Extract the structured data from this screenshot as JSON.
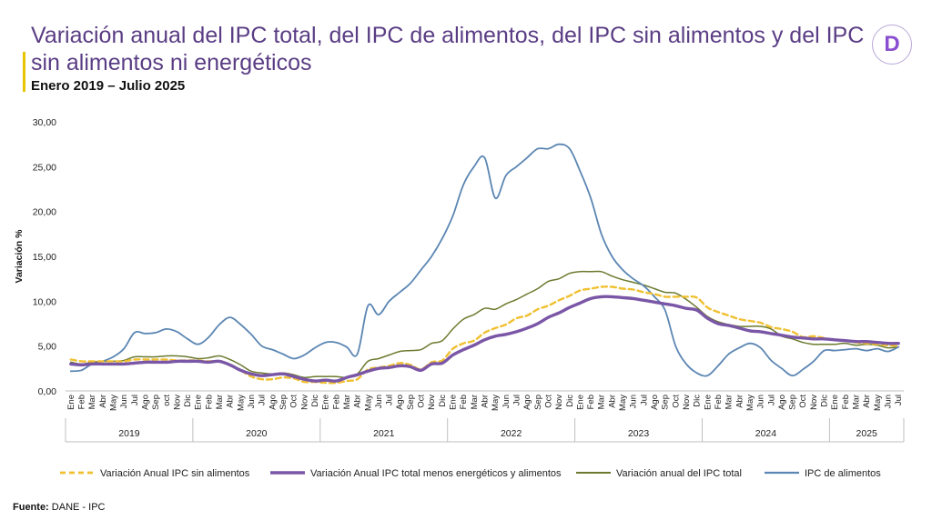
{
  "header": {
    "title": "Variación anual del IPC total, del IPC de alimentos, del IPC sin alimentos y del IPC sin alimentos ni energéticos",
    "subtitle": "Enero 2019 – Julio 2025",
    "logo_letter": "D"
  },
  "footer": {
    "source_label": "Fuente:",
    "source_value": "DANE - IPC"
  },
  "colors": {
    "title": "#5a3d84",
    "accent": "#e9c400"
  },
  "chart_data": {
    "type": "line",
    "ylabel": "Variación %",
    "ylim": [
      0,
      30
    ],
    "yticks": [
      "0,00",
      "5,00",
      "10,00",
      "15,00",
      "20,00",
      "25,00",
      "30,00"
    ],
    "month_labels": [
      "Ene",
      "Feb",
      "Mar",
      "Abr",
      "May",
      "Jun",
      "Jul",
      "Ago",
      "Sep",
      "oct",
      "Nov",
      "Dic",
      "Ene",
      "Feb",
      "Mar",
      "Abr",
      "May",
      "Jun",
      "Jul",
      "Ago",
      "Sep",
      "Oct",
      "Nov",
      "Dic",
      "Ene",
      "Feb",
      "Mar",
      "Abr",
      "May",
      "Jun",
      "Jul",
      "Ago",
      "Sep",
      "Oct",
      "Nov",
      "Dic",
      "Ene",
      "Feb",
      "Mar",
      "Abr",
      "May",
      "Jun",
      "Jul",
      "Ago",
      "Sep",
      "Oct",
      "Nov",
      "Dic",
      "Ene",
      "Feb",
      "Mar",
      "Abr",
      "May",
      "Jun",
      "Jul",
      "Ago",
      "Sep",
      "Oct",
      "Nov",
      "Dic",
      "Ene",
      "Feb",
      "Mar",
      "Abr",
      "May",
      "Jun",
      "Jul",
      "Ago",
      "Sep",
      "Oct",
      "Nov",
      "Dic",
      "Ene",
      "Feb",
      "Mar",
      "Abr",
      "May",
      "Jun",
      "Jul"
    ],
    "years": [
      "2019",
      "2020",
      "2021",
      "2022",
      "2023",
      "2024",
      "2025"
    ],
    "series": [
      {
        "name": "Variación Anual IPC sin alimentos",
        "color": "#f0c030",
        "style": "dashed",
        "values": [
          3.5,
          3.3,
          3.3,
          3.3,
          3.3,
          3.3,
          3.5,
          3.5,
          3.5,
          3.5,
          3.4,
          3.4,
          3.4,
          3.3,
          3.3,
          2.9,
          2.3,
          1.6,
          1.3,
          1.3,
          1.5,
          1.4,
          1.0,
          1.0,
          0.9,
          0.9,
          1.1,
          1.3,
          2.4,
          2.6,
          2.8,
          3.1,
          2.9,
          2.4,
          3.2,
          3.4,
          4.7,
          5.3,
          5.6,
          6.5,
          7.0,
          7.4,
          8.1,
          8.4,
          9.1,
          9.5,
          10.1,
          10.6,
          11.2,
          11.4,
          11.6,
          11.6,
          11.4,
          11.3,
          11.0,
          10.8,
          10.5,
          10.5,
          10.5,
          10.4,
          9.3,
          8.8,
          8.4,
          8.0,
          7.8,
          7.6,
          7.1,
          6.9,
          6.6,
          6.0,
          6.1,
          5.9,
          5.7,
          5.6,
          5.4,
          5.3,
          5.2,
          5.1,
          5.0
        ]
      },
      {
        "name": "Variación Anual IPC total menos energéticos y alimentos",
        "color": "#7a56a6",
        "style": "solid",
        "values": [
          3.0,
          2.9,
          3.0,
          3.0,
          3.0,
          3.0,
          3.1,
          3.2,
          3.2,
          3.2,
          3.3,
          3.3,
          3.3,
          3.2,
          3.3,
          2.9,
          2.3,
          1.9,
          1.7,
          1.8,
          1.9,
          1.6,
          1.3,
          1.1,
          1.2,
          1.1,
          1.5,
          1.8,
          2.2,
          2.5,
          2.6,
          2.8,
          2.7,
          2.3,
          3.0,
          3.1,
          4.0,
          4.6,
          5.1,
          5.7,
          6.1,
          6.3,
          6.6,
          7.0,
          7.5,
          8.2,
          8.7,
          9.3,
          9.8,
          10.3,
          10.5,
          10.5,
          10.4,
          10.3,
          10.1,
          9.9,
          9.7,
          9.5,
          9.2,
          9.0,
          8.1,
          7.5,
          7.3,
          7.0,
          6.7,
          6.6,
          6.4,
          6.2,
          6.0,
          5.9,
          5.8,
          5.8,
          5.7,
          5.6,
          5.5,
          5.5,
          5.4,
          5.3,
          5.3
        ]
      },
      {
        "name": "Variación anual del IPC total",
        "color": "#6b7a2f",
        "style": "solid",
        "values": [
          3.2,
          3.0,
          3.2,
          3.3,
          3.3,
          3.4,
          3.8,
          3.8,
          3.8,
          3.9,
          3.9,
          3.8,
          3.6,
          3.7,
          3.9,
          3.5,
          2.9,
          2.2,
          2.0,
          1.9,
          2.0,
          1.8,
          1.5,
          1.6,
          1.6,
          1.6,
          1.5,
          1.9,
          3.3,
          3.6,
          4.0,
          4.4,
          4.5,
          4.6,
          5.3,
          5.6,
          6.9,
          8.0,
          8.5,
          9.2,
          9.1,
          9.7,
          10.2,
          10.8,
          11.4,
          12.2,
          12.5,
          13.1,
          13.3,
          13.3,
          13.3,
          12.8,
          12.4,
          12.1,
          11.8,
          11.4,
          11.0,
          10.9,
          10.2,
          9.3,
          8.3,
          7.7,
          7.4,
          7.2,
          7.2,
          7.2,
          6.9,
          6.1,
          5.8,
          5.4,
          5.2,
          5.2,
          5.2,
          5.3,
          5.1,
          5.2,
          5.1,
          4.8,
          4.9
        ]
      },
      {
        "name": "IPC de alimentos",
        "color": "#5b86b3",
        "style": "solid",
        "values": [
          2.2,
          2.3,
          3.0,
          3.3,
          3.8,
          4.7,
          6.5,
          6.4,
          6.5,
          6.9,
          6.6,
          5.8,
          5.2,
          6.0,
          7.4,
          8.2,
          7.4,
          6.3,
          5.0,
          4.6,
          4.1,
          3.6,
          4.0,
          4.8,
          5.4,
          5.4,
          4.9,
          4.1,
          9.5,
          8.5,
          10.0,
          11.0,
          12.0,
          13.5,
          15.0,
          17.0,
          19.5,
          23.0,
          25.0,
          26.0,
          21.5,
          24.0,
          25.0,
          26.0,
          27.0,
          27.0,
          27.5,
          27.0,
          24.5,
          21.5,
          17.5,
          15.0,
          13.5,
          12.5,
          11.7,
          10.5,
          9.0,
          5.0,
          3.0,
          2.0,
          1.7,
          2.8,
          4.1,
          4.8,
          5.3,
          4.8,
          3.4,
          2.5,
          1.7,
          2.4,
          3.3,
          4.5,
          4.5,
          4.6,
          4.7,
          4.5,
          4.7,
          4.4,
          4.9
        ]
      }
    ]
  }
}
